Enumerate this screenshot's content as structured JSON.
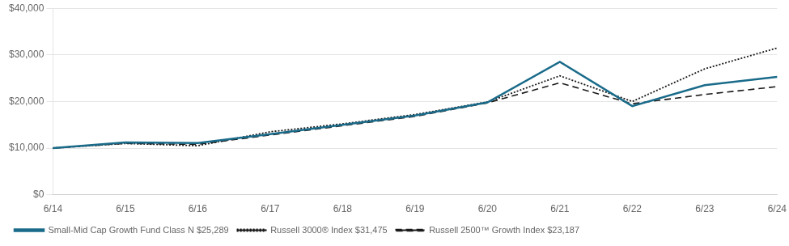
{
  "chart_data": {
    "type": "line",
    "categories": [
      "6/14",
      "6/15",
      "6/16",
      "6/17",
      "6/18",
      "6/19",
      "6/20",
      "6/21",
      "6/22",
      "6/23",
      "6/24"
    ],
    "series": [
      {
        "name": "Small-Mid Cap Growth Fund Class N $25,289",
        "color": "#1a6b8a",
        "line_style": "solid",
        "values": [
          10000,
          11200,
          11100,
          13000,
          15000,
          17000,
          19800,
          28500,
          19000,
          23500,
          25289
        ]
      },
      {
        "name": "Russell 3000® Index $31,475",
        "color": "#1a1a1a",
        "line_style": "dotted",
        "values": [
          10000,
          11000,
          10500,
          13500,
          15200,
          17200,
          19900,
          25500,
          20000,
          27000,
          31475
        ]
      },
      {
        "name": "Russell 2500™ Growth Index $23,187",
        "color": "#1a1a1a",
        "line_style": "dashed",
        "values": [
          10000,
          11000,
          10800,
          12800,
          14800,
          16800,
          19700,
          24000,
          19500,
          21500,
          23187
        ]
      }
    ],
    "ylim": [
      0,
      40000
    ],
    "yticks": [
      {
        "value": 0,
        "label": "$0"
      },
      {
        "value": 10000,
        "label": "$10,000"
      },
      {
        "value": 20000,
        "label": "$20,000"
      },
      {
        "value": 30000,
        "label": "$30,000"
      },
      {
        "value": 40000,
        "label": "$40,000"
      }
    ],
    "grid": true
  }
}
